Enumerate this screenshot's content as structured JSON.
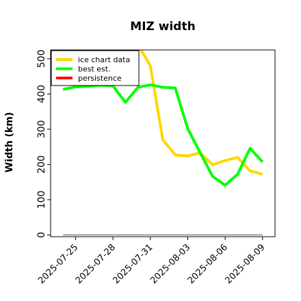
{
  "chart_data": {
    "type": "line",
    "title": "MIZ width",
    "xlabel": "",
    "ylabel": "Width (km)",
    "x_ticks": [
      "2025-07-25",
      "2025-07-28",
      "2025-07-31",
      "2025-08-03",
      "2025-08-06",
      "2025-08-09"
    ],
    "y_ticks": [
      "0",
      "100",
      "200",
      "300",
      "400",
      "500"
    ],
    "ylim": [
      -5,
      525
    ],
    "xlim": [
      "2025-07-23",
      "2025-08-10"
    ],
    "grid": false,
    "legend_position": "upper-left",
    "series": [
      {
        "name": "ice chart data",
        "color": "#FFD700",
        "x": [
          "2025-07-30",
          "2025-07-31",
          "2025-08-01",
          "2025-08-02",
          "2025-08-03",
          "2025-08-04",
          "2025-08-05",
          "2025-08-06",
          "2025-08-07",
          "2025-08-08",
          "2025-08-09"
        ],
        "y": [
          540,
          480,
          270,
          227,
          224,
          233,
          199,
          211,
          220,
          182,
          172
        ]
      },
      {
        "name": "best est.",
        "color": "#00FF00",
        "x": [
          "2025-07-24",
          "2025-07-25",
          "2025-07-26",
          "2025-07-27",
          "2025-07-28",
          "2025-07-29",
          "2025-07-30",
          "2025-07-31",
          "2025-08-01",
          "2025-08-02",
          "2025-08-03",
          "2025-08-04",
          "2025-08-05",
          "2025-08-06",
          "2025-08-07",
          "2025-08-08",
          "2025-08-09"
        ],
        "y": [
          413,
          420,
          422,
          425,
          423,
          376,
          419,
          426,
          419,
          417,
          302,
          233,
          166,
          141,
          172,
          246,
          207
        ]
      },
      {
        "name": "persistence",
        "color": "#FF0000",
        "x": [],
        "y": []
      },
      {
        "name": "",
        "color": "#808080",
        "x": [
          "2025-07-24",
          "2025-08-09"
        ],
        "y": [
          0,
          0
        ]
      }
    ]
  }
}
